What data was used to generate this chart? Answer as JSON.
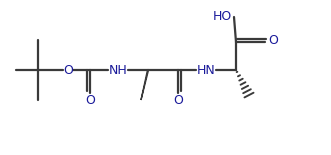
{
  "bg_color": "#ffffff",
  "line_color": "#3a3a3a",
  "bond_lw": 1.6,
  "text_color": "#1a1a9a",
  "text_fs": 8.5,
  "dpi": 100,
  "figw": 3.31,
  "figh": 1.55,
  "xlim": [
    0,
    331
  ],
  "ylim": [
    0,
    155
  ]
}
